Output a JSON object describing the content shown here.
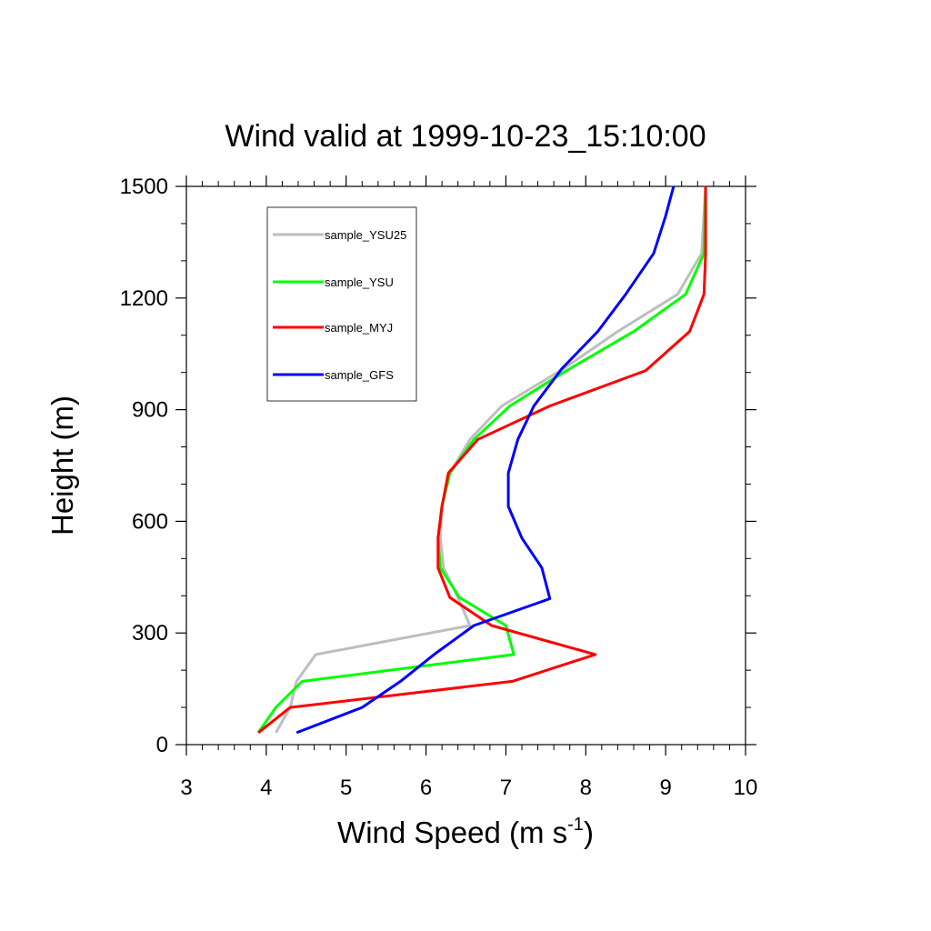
{
  "chart_data": {
    "type": "line",
    "title": "Wind valid at 1999-10-23_15:10:00",
    "xlabel": "Wind Speed (m s",
    "xlabel_sup": "-1",
    "xlabel_close": ")",
    "ylabel": "Height (m)",
    "xlim": [
      3,
      10
    ],
    "ylim": [
      0,
      1500
    ],
    "xticks": [
      3,
      4,
      5,
      6,
      7,
      8,
      9,
      10
    ],
    "yticks": [
      0,
      300,
      600,
      900,
      1200,
      1500
    ],
    "legend_position": "top-left",
    "grid": false,
    "series": [
      {
        "name": "sample_YSU25",
        "color": "#bebebe",
        "points": [
          [
            4.12,
            32
          ],
          [
            4.3,
            100
          ],
          [
            4.38,
            170
          ],
          [
            4.62,
            242
          ],
          [
            6.55,
            320
          ],
          [
            6.4,
            395
          ],
          [
            6.22,
            475
          ],
          [
            6.18,
            555
          ],
          [
            6.2,
            640
          ],
          [
            6.3,
            730
          ],
          [
            6.55,
            820
          ],
          [
            6.95,
            910
          ],
          [
            7.72,
            1010
          ],
          [
            8.4,
            1110
          ],
          [
            9.15,
            1210
          ],
          [
            9.45,
            1320
          ],
          [
            9.5,
            1500
          ]
        ]
      },
      {
        "name": "sample_YSU",
        "color": "#00ff00",
        "points": [
          [
            3.9,
            32
          ],
          [
            4.12,
            100
          ],
          [
            4.45,
            170
          ],
          [
            7.1,
            242
          ],
          [
            7.0,
            320
          ],
          [
            6.42,
            395
          ],
          [
            6.18,
            475
          ],
          [
            6.15,
            555
          ],
          [
            6.2,
            640
          ],
          [
            6.3,
            730
          ],
          [
            6.6,
            820
          ],
          [
            7.05,
            910
          ],
          [
            7.72,
            1000
          ],
          [
            8.6,
            1110
          ],
          [
            9.25,
            1210
          ],
          [
            9.48,
            1320
          ],
          [
            9.5,
            1500
          ]
        ]
      },
      {
        "name": "sample_MYJ",
        "color": "#ff0000",
        "points": [
          [
            3.9,
            32
          ],
          [
            4.3,
            100
          ],
          [
            7.08,
            170
          ],
          [
            8.12,
            242
          ],
          [
            6.82,
            320
          ],
          [
            6.3,
            395
          ],
          [
            6.15,
            475
          ],
          [
            6.15,
            555
          ],
          [
            6.2,
            640
          ],
          [
            6.28,
            730
          ],
          [
            6.65,
            820
          ],
          [
            7.55,
            910
          ],
          [
            8.75,
            1005
          ],
          [
            9.3,
            1110
          ],
          [
            9.48,
            1210
          ],
          [
            9.5,
            1320
          ],
          [
            9.5,
            1500
          ]
        ]
      },
      {
        "name": "sample_GFS",
        "color": "#0000ff",
        "points": [
          [
            4.38,
            32
          ],
          [
            5.2,
            100
          ],
          [
            5.68,
            170
          ],
          [
            6.1,
            242
          ],
          [
            6.6,
            320
          ],
          [
            7.55,
            392
          ],
          [
            7.45,
            475
          ],
          [
            7.2,
            555
          ],
          [
            7.03,
            640
          ],
          [
            7.03,
            730
          ],
          [
            7.15,
            820
          ],
          [
            7.35,
            910
          ],
          [
            7.7,
            1010
          ],
          [
            8.15,
            1110
          ],
          [
            8.5,
            1210
          ],
          [
            8.85,
            1320
          ],
          [
            9.0,
            1420
          ],
          [
            9.1,
            1500
          ]
        ]
      }
    ]
  }
}
